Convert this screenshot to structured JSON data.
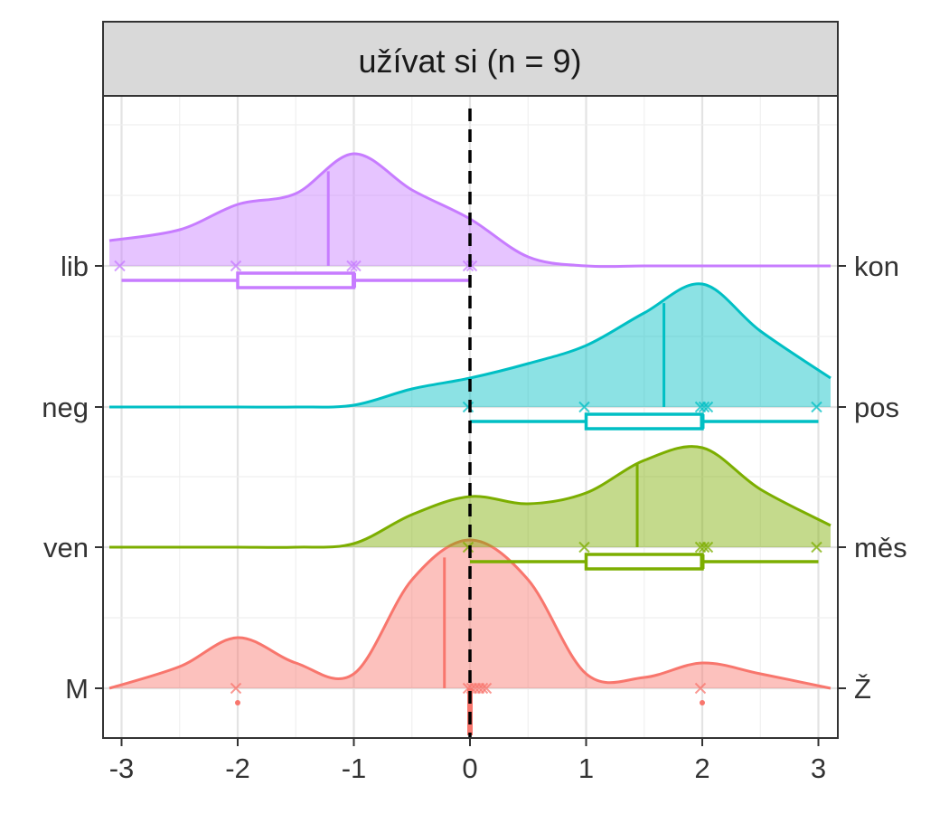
{
  "chart_data": {
    "type": "ridgeline-density",
    "facet_title": "užívat si (n = 9)",
    "x_ticks": [
      "-3",
      "-2",
      "-1",
      "0",
      "1",
      "2",
      "3"
    ],
    "xlim": [
      -3,
      3
    ],
    "reference_line_x": 0,
    "grid": true,
    "rows": [
      {
        "left_label": "M",
        "right_label": "Ž",
        "color": "#F8766D",
        "density_x": [
          -3,
          -2.5,
          -2,
          -1.5,
          -1,
          -0.5,
          0,
          0.5,
          1,
          1.5,
          2,
          2.5,
          3
        ],
        "density_y": [
          0.0,
          0.12,
          0.28,
          0.14,
          0.08,
          0.6,
          0.82,
          0.6,
          0.08,
          0.06,
          0.14,
          0.08,
          0.0
        ],
        "mean": -0.22,
        "points": [
          -2,
          0,
          0,
          0,
          0,
          0,
          0,
          2
        ],
        "boxplot": null,
        "outliers": [
          -2,
          2
        ]
      },
      {
        "left_label": "ven",
        "right_label": "měs",
        "color": "#7CAE00",
        "density_x": [
          -3,
          -2.5,
          -2,
          -1.5,
          -1,
          -0.5,
          0,
          0.5,
          1,
          1.5,
          2,
          2.5,
          3
        ],
        "density_y": [
          0.0,
          0.0,
          0.0,
          0.0,
          0.02,
          0.18,
          0.28,
          0.24,
          0.3,
          0.48,
          0.55,
          0.32,
          0.12
        ],
        "mean": 1.44,
        "points": [
          0,
          1,
          2,
          2,
          2,
          3
        ],
        "boxplot": {
          "min": 0,
          "q1": 1,
          "median": 2,
          "q3": 2,
          "max": 3
        },
        "outliers": []
      },
      {
        "left_label": "neg",
        "right_label": "pos",
        "color": "#00BFC4",
        "density_x": [
          -3,
          -2.5,
          -2,
          -1.5,
          -1,
          -0.5,
          0,
          0.5,
          1,
          1.5,
          2,
          2.5,
          3
        ],
        "density_y": [
          0.0,
          0.0,
          0.0,
          0.0,
          0.01,
          0.1,
          0.16,
          0.24,
          0.34,
          0.52,
          0.68,
          0.42,
          0.16
        ],
        "mean": 1.67,
        "points": [
          0,
          1,
          2,
          2,
          2,
          3
        ],
        "boxplot": {
          "min": 0,
          "q1": 1,
          "median": 2,
          "q3": 2,
          "max": 3
        },
        "outliers": []
      },
      {
        "left_label": "lib",
        "right_label": "kon",
        "color": "#C77CFF",
        "density_x": [
          -3,
          -2.5,
          -2,
          -1.5,
          -1,
          -0.5,
          0,
          0.5,
          1,
          1.5,
          2,
          2.5,
          3
        ],
        "density_y": [
          0.14,
          0.2,
          0.34,
          0.4,
          0.62,
          0.42,
          0.26,
          0.05,
          0.0,
          0.0,
          0.0,
          0.0,
          0.0
        ],
        "mean": -1.22,
        "points": [
          -3,
          -2,
          -1,
          -1,
          0,
          0
        ],
        "boxplot": {
          "min": -3,
          "q1": -2,
          "median": -1,
          "q3": -1,
          "max": 0
        },
        "outliers": []
      }
    ]
  }
}
